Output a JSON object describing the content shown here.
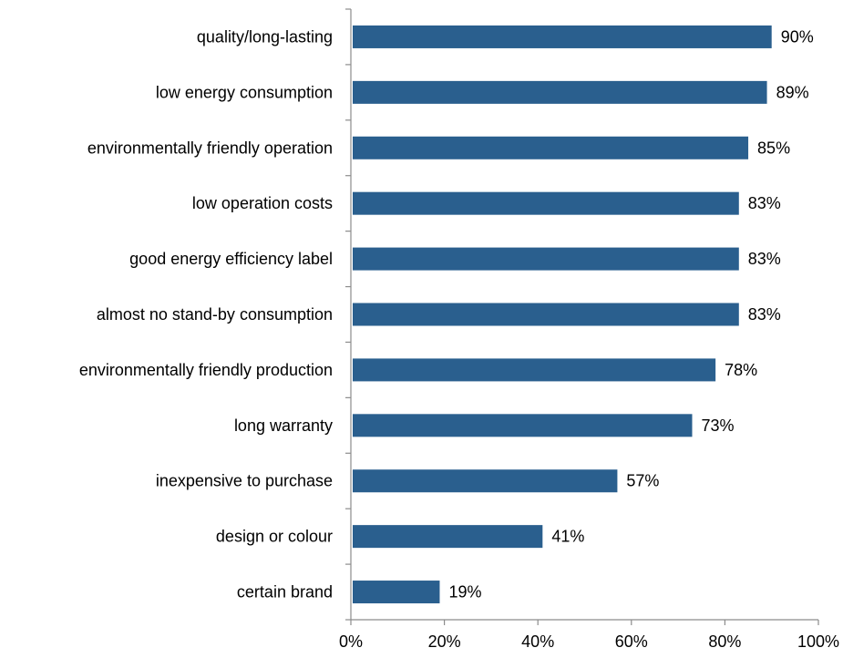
{
  "chart_data": {
    "type": "bar",
    "orientation": "horizontal",
    "categories": [
      "quality/long-lasting",
      "low energy consumption",
      "environmentally friendly operation",
      "low operation costs",
      "good energy efficiency label",
      "almost no stand-by consumption",
      "environmentally friendly production",
      "long warranty",
      "inexpensive to purchase",
      "design or colour",
      "certain brand"
    ],
    "values": [
      90,
      89,
      85,
      83,
      83,
      83,
      78,
      73,
      57,
      41,
      19
    ],
    "value_labels": [
      "90%",
      "89%",
      "85%",
      "83%",
      "83%",
      "83%",
      "78%",
      "73%",
      "57%",
      "41%",
      "19%"
    ],
    "xlim": [
      0,
      100
    ],
    "x_ticks": [
      "0%",
      "20%",
      "40%",
      "60%",
      "80%",
      "100%"
    ],
    "x_tick_values": [
      0,
      20,
      40,
      60,
      80,
      100
    ],
    "bar_color": "#2A5F8E",
    "axis_color": "#8C8C8C",
    "grid": false,
    "legend": false
  }
}
